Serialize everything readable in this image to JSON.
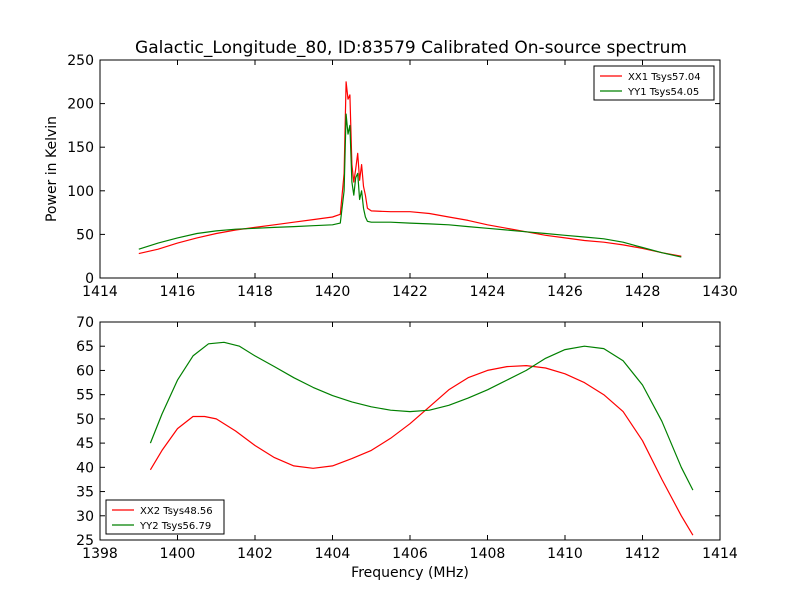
{
  "figure": {
    "title": "Galactic_Longitude_80, ID:83579 Calibrated On-source spectrum"
  },
  "chart_data": [
    {
      "type": "line",
      "title": "Galactic_Longitude_80, ID:83579 Calibrated On-source spectrum",
      "xlabel": "",
      "ylabel": "Power in Kelvin",
      "xlim": [
        1414,
        1430
      ],
      "ylim": [
        0,
        250
      ],
      "xticks": [
        "1414",
        "1416",
        "1418",
        "1420",
        "1422",
        "1424",
        "1426",
        "1428",
        "1430"
      ],
      "yticks": [
        "0",
        "50",
        "100",
        "150",
        "200",
        "250"
      ],
      "grid": false,
      "legend_position": "top-right",
      "series": [
        {
          "name": "XX1 Tsys57.04",
          "color": "#ff0000",
          "points": [
            [
              1415.0,
              28
            ],
            [
              1415.5,
              33
            ],
            [
              1416.0,
              40
            ],
            [
              1416.5,
              46
            ],
            [
              1417.0,
              51
            ],
            [
              1417.5,
              55
            ],
            [
              1418.0,
              58
            ],
            [
              1418.5,
              61
            ],
            [
              1419.0,
              64
            ],
            [
              1419.5,
              67
            ],
            [
              1420.0,
              70
            ],
            [
              1420.2,
              73
            ],
            [
              1420.3,
              120
            ],
            [
              1420.35,
              225
            ],
            [
              1420.4,
              205
            ],
            [
              1420.45,
              210
            ],
            [
              1420.5,
              130
            ],
            [
              1420.55,
              110
            ],
            [
              1420.6,
              125
            ],
            [
              1420.65,
              143
            ],
            [
              1420.7,
              112
            ],
            [
              1420.75,
              130
            ],
            [
              1420.8,
              105
            ],
            [
              1420.85,
              95
            ],
            [
              1420.9,
              80
            ],
            [
              1421.0,
              77
            ],
            [
              1421.5,
              76
            ],
            [
              1422.0,
              76
            ],
            [
              1422.5,
              74
            ],
            [
              1423.0,
              70
            ],
            [
              1423.5,
              66
            ],
            [
              1424.0,
              61
            ],
            [
              1424.5,
              57
            ],
            [
              1425.0,
              53
            ],
            [
              1425.5,
              49
            ],
            [
              1426.0,
              46
            ],
            [
              1426.5,
              43
            ],
            [
              1427.0,
              41
            ],
            [
              1427.5,
              38
            ],
            [
              1428.0,
              34
            ],
            [
              1428.5,
              29
            ],
            [
              1429.0,
              25
            ]
          ]
        },
        {
          "name": "YY1 Tsys54.05",
          "color": "#008000",
          "points": [
            [
              1415.0,
              33
            ],
            [
              1415.5,
              40
            ],
            [
              1416.0,
              46
            ],
            [
              1416.5,
              51
            ],
            [
              1417.0,
              54
            ],
            [
              1417.5,
              56
            ],
            [
              1418.0,
              57
            ],
            [
              1418.5,
              58
            ],
            [
              1419.0,
              59
            ],
            [
              1419.5,
              60
            ],
            [
              1420.0,
              61
            ],
            [
              1420.2,
              63
            ],
            [
              1420.3,
              100
            ],
            [
              1420.35,
              188
            ],
            [
              1420.4,
              165
            ],
            [
              1420.45,
              175
            ],
            [
              1420.5,
              110
            ],
            [
              1420.55,
              95
            ],
            [
              1420.6,
              115
            ],
            [
              1420.65,
              120
            ],
            [
              1420.7,
              90
            ],
            [
              1420.75,
              100
            ],
            [
              1420.8,
              80
            ],
            [
              1420.85,
              70
            ],
            [
              1420.9,
              65
            ],
            [
              1421.0,
              64
            ],
            [
              1421.5,
              64
            ],
            [
              1422.0,
              63
            ],
            [
              1422.5,
              62
            ],
            [
              1423.0,
              61
            ],
            [
              1423.5,
              59
            ],
            [
              1424.0,
              57
            ],
            [
              1424.5,
              55
            ],
            [
              1425.0,
              53
            ],
            [
              1425.5,
              51
            ],
            [
              1426.0,
              49
            ],
            [
              1426.5,
              47
            ],
            [
              1427.0,
              45
            ],
            [
              1427.5,
              41
            ],
            [
              1428.0,
              35
            ],
            [
              1428.5,
              29
            ],
            [
              1429.0,
              24
            ]
          ]
        }
      ]
    },
    {
      "type": "line",
      "title": "",
      "xlabel": "Frequency (MHz)",
      "ylabel": "",
      "xlim": [
        1398,
        1414
      ],
      "ylim": [
        25,
        70
      ],
      "xticks": [
        "1398",
        "1400",
        "1402",
        "1404",
        "1406",
        "1408",
        "1410",
        "1412",
        "1414"
      ],
      "yticks": [
        "25",
        "30",
        "35",
        "40",
        "45",
        "50",
        "55",
        "60",
        "65",
        "70"
      ],
      "grid": false,
      "legend_position": "bottom-left",
      "series": [
        {
          "name": "XX2 Tsys48.56",
          "color": "#ff0000",
          "points": [
            [
              1399.3,
              39.5
            ],
            [
              1399.6,
              43.5
            ],
            [
              1400.0,
              48
            ],
            [
              1400.4,
              50.5
            ],
            [
              1400.7,
              50.5
            ],
            [
              1401.0,
              50
            ],
            [
              1401.5,
              47.5
            ],
            [
              1402.0,
              44.5
            ],
            [
              1402.5,
              42
            ],
            [
              1403.0,
              40.3
            ],
            [
              1403.5,
              39.8
            ],
            [
              1404.0,
              40.3
            ],
            [
              1404.5,
              41.8
            ],
            [
              1405.0,
              43.5
            ],
            [
              1405.5,
              46
            ],
            [
              1406.0,
              49
            ],
            [
              1406.5,
              52.5
            ],
            [
              1407.0,
              56
            ],
            [
              1407.5,
              58.5
            ],
            [
              1408.0,
              60
            ],
            [
              1408.5,
              60.8
            ],
            [
              1409.0,
              61
            ],
            [
              1409.5,
              60.5
            ],
            [
              1410.0,
              59.3
            ],
            [
              1410.5,
              57.5
            ],
            [
              1411.0,
              55
            ],
            [
              1411.5,
              51.5
            ],
            [
              1412.0,
              45.5
            ],
            [
              1412.5,
              37.5
            ],
            [
              1413.0,
              30
            ],
            [
              1413.3,
              26
            ]
          ]
        },
        {
          "name": "YY2 Tsys56.79",
          "color": "#008000",
          "points": [
            [
              1399.3,
              45
            ],
            [
              1399.6,
              51
            ],
            [
              1400.0,
              58
            ],
            [
              1400.4,
              63
            ],
            [
              1400.8,
              65.5
            ],
            [
              1401.2,
              65.8
            ],
            [
              1401.6,
              65
            ],
            [
              1402.0,
              63
            ],
            [
              1402.5,
              60.8
            ],
            [
              1403.0,
              58.5
            ],
            [
              1403.5,
              56.5
            ],
            [
              1404.0,
              54.8
            ],
            [
              1404.5,
              53.5
            ],
            [
              1405.0,
              52.5
            ],
            [
              1405.5,
              51.8
            ],
            [
              1406.0,
              51.5
            ],
            [
              1406.5,
              51.8
            ],
            [
              1407.0,
              52.8
            ],
            [
              1407.5,
              54.3
            ],
            [
              1408.0,
              56
            ],
            [
              1408.5,
              58
            ],
            [
              1409.0,
              60
            ],
            [
              1409.5,
              62.5
            ],
            [
              1410.0,
              64.3
            ],
            [
              1410.5,
              65
            ],
            [
              1411.0,
              64.5
            ],
            [
              1411.5,
              62
            ],
            [
              1412.0,
              57
            ],
            [
              1412.5,
              49.5
            ],
            [
              1413.0,
              40
            ],
            [
              1413.3,
              35.3
            ]
          ]
        }
      ]
    }
  ]
}
